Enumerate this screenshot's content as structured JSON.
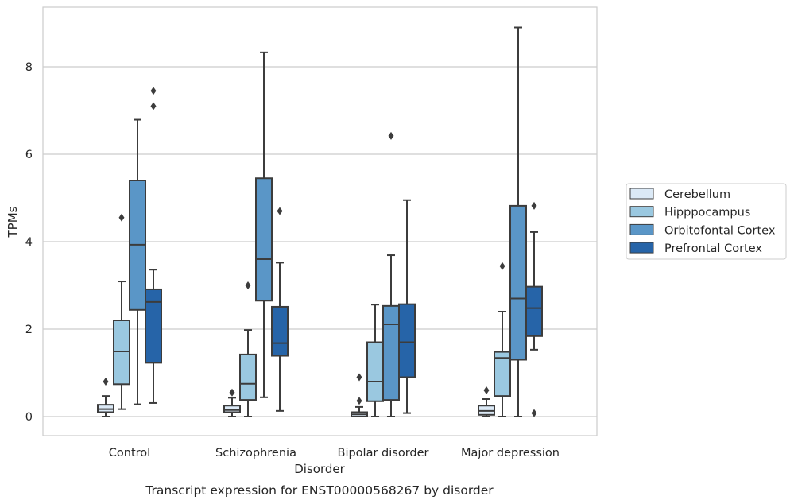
{
  "chart_data": {
    "type": "boxplot",
    "title": "",
    "caption": "Transcript expression for ENST00000568267 by disorder",
    "xlabel": "Disorder",
    "ylabel": "TPMs",
    "ylim": [
      -0.43,
      9.3
    ],
    "yticks": [
      0,
      2,
      4,
      6,
      8
    ],
    "grid": "horizontal",
    "legend_position": "right",
    "categories": [
      "Control",
      "Schizophrenia",
      "Bipolar disorder",
      "Major depression"
    ],
    "series": [
      {
        "name": "Cerebellum",
        "color": "#dbe9f6",
        "boxes": [
          {
            "whisker_low": 0.0,
            "q1": 0.1,
            "median": 0.17,
            "q3": 0.27,
            "whisker_high": 0.47,
            "outliers": [
              0.8
            ]
          },
          {
            "whisker_low": 0.0,
            "q1": 0.1,
            "median": 0.15,
            "q3": 0.25,
            "whisker_high": 0.43,
            "outliers": [
              0.55
            ]
          },
          {
            "whisker_low": 0.0,
            "q1": 0.0,
            "median": 0.05,
            "q3": 0.1,
            "whisker_high": 0.22,
            "outliers": [
              0.36,
              0.9
            ]
          },
          {
            "whisker_low": 0.0,
            "q1": 0.04,
            "median": 0.13,
            "q3": 0.25,
            "whisker_high": 0.4,
            "outliers": [
              0.6
            ]
          }
        ]
      },
      {
        "name": "Hipppocampus",
        "color": "#9ac8e0",
        "boxes": [
          {
            "whisker_low": 0.17,
            "q1": 0.74,
            "median": 1.49,
            "q3": 2.2,
            "whisker_high": 3.09,
            "outliers": [
              4.55
            ]
          },
          {
            "whisker_low": 0.0,
            "q1": 0.38,
            "median": 0.75,
            "q3": 1.42,
            "whisker_high": 1.98,
            "outliers": [
              3.0
            ]
          },
          {
            "whisker_low": 0.0,
            "q1": 0.35,
            "median": 0.8,
            "q3": 1.7,
            "whisker_high": 2.56,
            "outliers": []
          },
          {
            "whisker_low": 0.0,
            "q1": 0.47,
            "median": 1.34,
            "q3": 1.48,
            "whisker_high": 2.4,
            "outliers": [
              3.44
            ]
          }
        ]
      },
      {
        "name": "Orbitofontal Cortex",
        "color": "#5a96c7",
        "boxes": [
          {
            "whisker_low": 0.28,
            "q1": 2.44,
            "median": 3.93,
            "q3": 5.4,
            "whisker_high": 6.79,
            "outliers": []
          },
          {
            "whisker_low": 0.44,
            "q1": 2.65,
            "median": 3.6,
            "q3": 5.45,
            "whisker_high": 8.33,
            "outliers": []
          },
          {
            "whisker_low": 0.0,
            "q1": 0.38,
            "median": 2.11,
            "q3": 2.53,
            "whisker_high": 3.69,
            "outliers": [
              6.42
            ]
          },
          {
            "whisker_low": 0.0,
            "q1": 1.3,
            "median": 2.7,
            "q3": 4.82,
            "whisker_high": 8.9,
            "outliers": []
          }
        ]
      },
      {
        "name": "Prefrontal Cortex",
        "color": "#2664a8",
        "boxes": [
          {
            "whisker_low": 0.31,
            "q1": 1.23,
            "median": 2.62,
            "q3": 2.91,
            "whisker_high": 3.36,
            "outliers": [
              7.1,
              7.45
            ]
          },
          {
            "whisker_low": 0.13,
            "q1": 1.39,
            "median": 1.68,
            "q3": 2.51,
            "whisker_high": 3.52,
            "outliers": [
              4.7
            ]
          },
          {
            "whisker_low": 0.08,
            "q1": 0.9,
            "median": 1.7,
            "q3": 2.57,
            "whisker_high": 4.95,
            "outliers": []
          },
          {
            "whisker_low": 1.53,
            "q1": 1.84,
            "median": 2.48,
            "q3": 2.97,
            "whisker_high": 4.22,
            "outliers": [
              0.08,
              4.82
            ]
          }
        ]
      }
    ]
  }
}
